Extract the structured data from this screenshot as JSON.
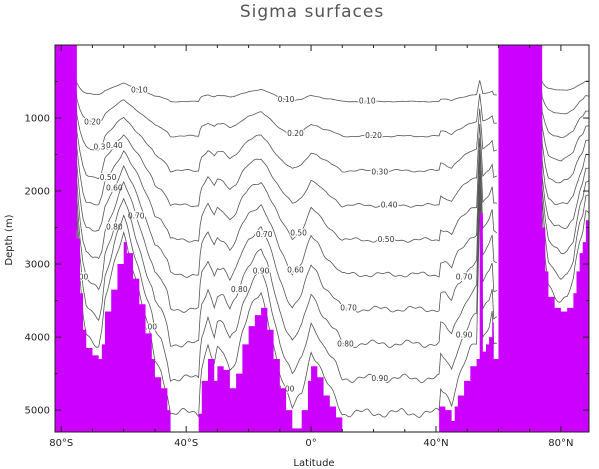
{
  "chart_data": {
    "type": "contour",
    "title": "Sigma surfaces",
    "xlabel": "Latitude",
    "ylabel": "Depth (m)",
    "xlim": [
      -82,
      89
    ],
    "ylim": [
      5300,
      0
    ],
    "x_ticks": [
      {
        "value": -80,
        "label": "80°S"
      },
      {
        "value": -40,
        "label": "40°S"
      },
      {
        "value": 0,
        "label": "0°"
      },
      {
        "value": 40,
        "label": "40°N"
      },
      {
        "value": 80,
        "label": "80°N"
      }
    ],
    "y_ticks": [
      {
        "value": 1000,
        "label": "1000"
      },
      {
        "value": 2000,
        "label": "2000"
      },
      {
        "value": 3000,
        "label": "3000"
      },
      {
        "value": 4000,
        "label": "4000"
      },
      {
        "value": 5000,
        "label": "5000"
      }
    ],
    "land_color": "#cc00ff",
    "line_color": "#555555",
    "bottom_topography": [
      [
        -82,
        0
      ],
      [
        -76,
        0
      ],
      [
        -75,
        2650
      ],
      [
        -74,
        3400
      ],
      [
        -73,
        3900
      ],
      [
        -72,
        4150
      ],
      [
        -70,
        4250
      ],
      [
        -68,
        4300
      ],
      [
        -67,
        4100
      ],
      [
        -66,
        3650
      ],
      [
        -64,
        3350
      ],
      [
        -62,
        3000
      ],
      [
        -60,
        2700
      ],
      [
        -59,
        2850
      ],
      [
        -57,
        3200
      ],
      [
        -55,
        3550
      ],
      [
        -53,
        3950
      ],
      [
        -51,
        4300
      ],
      [
        -50,
        4550
      ],
      [
        -48,
        4700
      ],
      [
        -46,
        5000
      ],
      [
        -45,
        5300
      ],
      [
        -36,
        5300
      ],
      [
        -36,
        5050
      ],
      [
        -35,
        4600
      ],
      [
        -33,
        4300
      ],
      [
        -31,
        4600
      ],
      [
        -30,
        4400
      ],
      [
        -28,
        4450
      ],
      [
        -26,
        4700
      ],
      [
        -24,
        4500
      ],
      [
        -22,
        4100
      ],
      [
        -20,
        3850
      ],
      [
        -18,
        3700
      ],
      [
        -16,
        3600
      ],
      [
        -14,
        3900
      ],
      [
        -12,
        4300
      ],
      [
        -10,
        4700
      ],
      [
        -8,
        5000
      ],
      [
        -6,
        5250
      ],
      [
        -3,
        5000
      ],
      [
        -1,
        4600
      ],
      [
        0,
        4400
      ],
      [
        2,
        4550
      ],
      [
        4,
        4800
      ],
      [
        6,
        4950
      ],
      [
        8,
        5100
      ],
      [
        10,
        5300
      ],
      [
        41,
        5300
      ],
      [
        41,
        4950
      ],
      [
        43,
        5000
      ],
      [
        45,
        5150
      ],
      [
        46,
        4950
      ],
      [
        47,
        4800
      ],
      [
        49,
        4600
      ],
      [
        51,
        4400
      ],
      [
        53,
        4300
      ],
      [
        54,
        2300
      ],
      [
        55,
        4200
      ],
      [
        56,
        4100
      ],
      [
        57,
        4000
      ],
      [
        58,
        3800
      ],
      [
        58.5,
        4300
      ],
      [
        59.5,
        4300
      ],
      [
        60,
        0
      ],
      [
        73,
        0
      ],
      [
        74,
        2500
      ],
      [
        75,
        3100
      ],
      [
        76,
        3450
      ],
      [
        78,
        3600
      ],
      [
        80,
        3650
      ],
      [
        82,
        3600
      ],
      [
        84,
        3400
      ],
      [
        85,
        3100
      ],
      [
        86,
        2850
      ],
      [
        87,
        2700
      ],
      [
        88,
        2400
      ],
      [
        89,
        2400
      ]
    ],
    "contour_levels": [
      {
        "label": "0.10",
        "label_lats": [
          -55,
          -8,
          18
        ]
      },
      {
        "label": "0.20",
        "label_lats": [
          -70,
          -5,
          20
        ]
      },
      {
        "label": "0.30",
        "label_lats": [
          -67,
          22
        ]
      },
      {
        "label": "0.40",
        "label_lats": [
          -63,
          25
        ]
      },
      {
        "label": "0.50",
        "label_lats": [
          -65,
          -4,
          24
        ]
      },
      {
        "label": "0.60",
        "label_lats": [
          -63,
          -5
        ]
      },
      {
        "label": "0.70",
        "label_lats": [
          -56,
          -15,
          12,
          49
        ]
      },
      {
        "label": "0.80",
        "label_lats": [
          -63,
          -23,
          11
        ]
      },
      {
        "label": "0.90",
        "label_lats": [
          -16,
          22,
          49
        ]
      },
      {
        "label": "1.00",
        "label_lats": [
          -74,
          -52,
          -8
        ]
      }
    ]
  }
}
